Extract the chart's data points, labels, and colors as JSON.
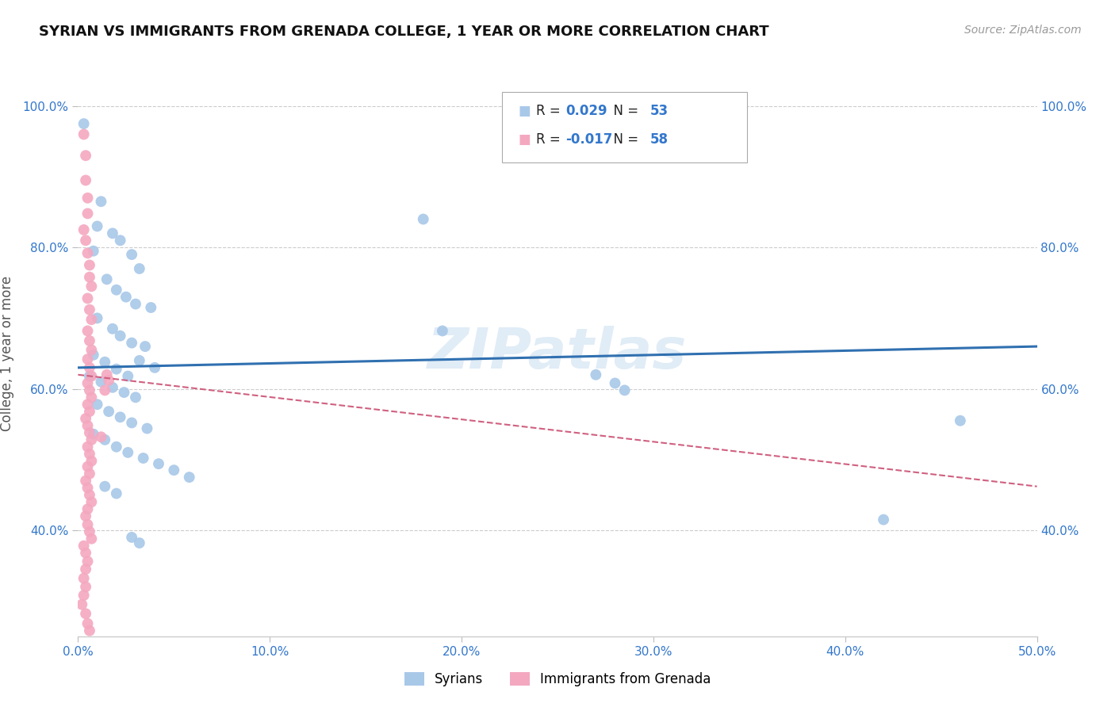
{
  "title": "SYRIAN VS IMMIGRANTS FROM GRENADA COLLEGE, 1 YEAR OR MORE CORRELATION CHART",
  "source": "Source: ZipAtlas.com",
  "ylabel": "College, 1 year or more",
  "xlim": [
    0.0,
    0.5
  ],
  "ylim": [
    0.25,
    1.05
  ],
  "xtick_labels": [
    "0.0%",
    "10.0%",
    "20.0%",
    "30.0%",
    "40.0%",
    "50.0%"
  ],
  "xtick_vals": [
    0.0,
    0.1,
    0.2,
    0.3,
    0.4,
    0.5
  ],
  "ytick_labels": [
    "40.0%",
    "60.0%",
    "80.0%",
    "100.0%"
  ],
  "ytick_vals": [
    0.4,
    0.6,
    0.8,
    1.0
  ],
  "R_syrian": 0.029,
  "N_syrian": 53,
  "R_grenada": -0.017,
  "N_grenada": 58,
  "watermark": "ZIPatlas",
  "syrian_color": "#a8c8e8",
  "grenada_color": "#f4a8c0",
  "syrian_line_color": "#3070b0",
  "grenada_line_color": "#d06080",
  "background_color": "#ffffff",
  "grid_color": "#cccccc",
  "syrian_points": [
    [
      0.003,
      0.975
    ],
    [
      0.012,
      0.865
    ],
    [
      0.01,
      0.83
    ],
    [
      0.008,
      0.795
    ],
    [
      0.018,
      0.82
    ],
    [
      0.022,
      0.81
    ],
    [
      0.028,
      0.79
    ],
    [
      0.032,
      0.77
    ],
    [
      0.015,
      0.755
    ],
    [
      0.02,
      0.74
    ],
    [
      0.025,
      0.73
    ],
    [
      0.03,
      0.72
    ],
    [
      0.038,
      0.715
    ],
    [
      0.01,
      0.7
    ],
    [
      0.018,
      0.685
    ],
    [
      0.022,
      0.675
    ],
    [
      0.028,
      0.665
    ],
    [
      0.035,
      0.66
    ],
    [
      0.008,
      0.648
    ],
    [
      0.014,
      0.638
    ],
    [
      0.02,
      0.628
    ],
    [
      0.026,
      0.618
    ],
    [
      0.032,
      0.64
    ],
    [
      0.04,
      0.63
    ],
    [
      0.006,
      0.618
    ],
    [
      0.012,
      0.61
    ],
    [
      0.018,
      0.602
    ],
    [
      0.024,
      0.595
    ],
    [
      0.03,
      0.588
    ],
    [
      0.01,
      0.578
    ],
    [
      0.016,
      0.568
    ],
    [
      0.022,
      0.56
    ],
    [
      0.028,
      0.552
    ],
    [
      0.036,
      0.544
    ],
    [
      0.008,
      0.536
    ],
    [
      0.014,
      0.528
    ],
    [
      0.02,
      0.518
    ],
    [
      0.026,
      0.51
    ],
    [
      0.034,
      0.502
    ],
    [
      0.042,
      0.494
    ],
    [
      0.05,
      0.485
    ],
    [
      0.058,
      0.475
    ],
    [
      0.014,
      0.462
    ],
    [
      0.02,
      0.452
    ],
    [
      0.18,
      0.84
    ],
    [
      0.27,
      0.62
    ],
    [
      0.28,
      0.608
    ],
    [
      0.285,
      0.598
    ],
    [
      0.42,
      0.415
    ],
    [
      0.46,
      0.555
    ],
    [
      0.19,
      0.682
    ],
    [
      0.028,
      0.39
    ],
    [
      0.032,
      0.382
    ]
  ],
  "grenada_points": [
    [
      0.003,
      0.96
    ],
    [
      0.004,
      0.93
    ],
    [
      0.004,
      0.895
    ],
    [
      0.005,
      0.87
    ],
    [
      0.005,
      0.848
    ],
    [
      0.003,
      0.825
    ],
    [
      0.004,
      0.81
    ],
    [
      0.005,
      0.792
    ],
    [
      0.006,
      0.775
    ],
    [
      0.006,
      0.758
    ],
    [
      0.007,
      0.745
    ],
    [
      0.005,
      0.728
    ],
    [
      0.006,
      0.712
    ],
    [
      0.007,
      0.698
    ],
    [
      0.005,
      0.682
    ],
    [
      0.006,
      0.668
    ],
    [
      0.007,
      0.655
    ],
    [
      0.005,
      0.642
    ],
    [
      0.006,
      0.63
    ],
    [
      0.007,
      0.618
    ],
    [
      0.005,
      0.608
    ],
    [
      0.006,
      0.598
    ],
    [
      0.007,
      0.588
    ],
    [
      0.005,
      0.578
    ],
    [
      0.006,
      0.568
    ],
    [
      0.004,
      0.558
    ],
    [
      0.005,
      0.548
    ],
    [
      0.006,
      0.538
    ],
    [
      0.007,
      0.528
    ],
    [
      0.005,
      0.518
    ],
    [
      0.006,
      0.508
    ],
    [
      0.007,
      0.498
    ],
    [
      0.005,
      0.49
    ],
    [
      0.006,
      0.48
    ],
    [
      0.004,
      0.47
    ],
    [
      0.005,
      0.46
    ],
    [
      0.006,
      0.45
    ],
    [
      0.007,
      0.44
    ],
    [
      0.005,
      0.43
    ],
    [
      0.004,
      0.42
    ],
    [
      0.005,
      0.408
    ],
    [
      0.006,
      0.398
    ],
    [
      0.007,
      0.388
    ],
    [
      0.003,
      0.378
    ],
    [
      0.004,
      0.368
    ],
    [
      0.005,
      0.356
    ],
    [
      0.004,
      0.345
    ],
    [
      0.003,
      0.332
    ],
    [
      0.004,
      0.32
    ],
    [
      0.003,
      0.308
    ],
    [
      0.002,
      0.295
    ],
    [
      0.004,
      0.282
    ],
    [
      0.005,
      0.268
    ],
    [
      0.006,
      0.258
    ],
    [
      0.015,
      0.62
    ],
    [
      0.016,
      0.612
    ],
    [
      0.014,
      0.598
    ],
    [
      0.012,
      0.532
    ]
  ]
}
